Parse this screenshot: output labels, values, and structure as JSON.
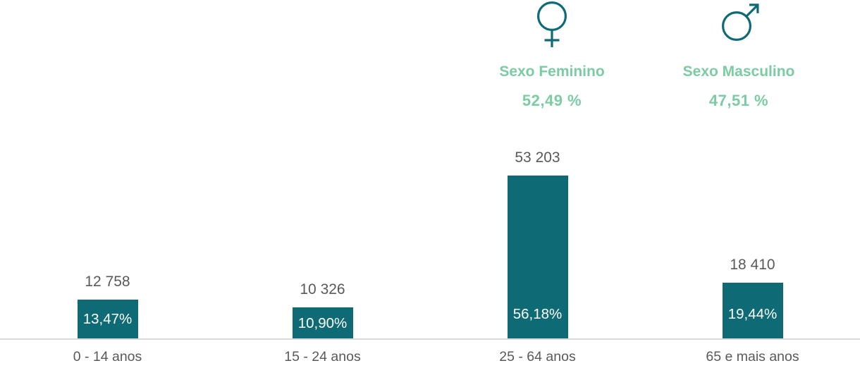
{
  "chart_data": {
    "type": "bar",
    "categories": [
      "0 - 14 anos",
      "15 - 24 anos",
      "25 - 64 anos",
      "65 e mais anos"
    ],
    "values": [
      12758,
      10326,
      53203,
      18410
    ],
    "count_labels": [
      "12 758",
      "10 326",
      "53 203",
      "18 410"
    ],
    "percent_labels": [
      "13,47%",
      "10,90%",
      "56,18%",
      "19,44%"
    ],
    "series_note": "population counts per age group with share of total shown inside each bar",
    "ylim": [
      0,
      53203
    ],
    "grid": "off",
    "legend": "none",
    "bar_color": "#0E6B76",
    "label_color": "#595959",
    "inside_label_color": "#FFFFFF",
    "axis_line_color": "#D9D9D9"
  },
  "gender_summary": {
    "accent_color": "#7BCCA3",
    "icon_color": "#0E6B76",
    "female": {
      "icon": "female-gender-icon",
      "label": "Sexo Feminino",
      "percent": "52,49 %"
    },
    "male": {
      "icon": "male-gender-icon",
      "label": "Sexo Masculino",
      "percent": "47,51 %"
    }
  }
}
